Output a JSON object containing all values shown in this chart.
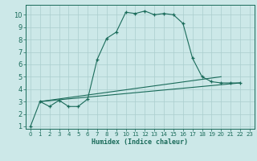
{
  "xlabel": "Humidex (Indice chaleur)",
  "bg_color": "#cce8e8",
  "line_color": "#1a6b5a",
  "grid_color": "#aacece",
  "xlim": [
    -0.5,
    23.5
  ],
  "ylim": [
    0.8,
    10.8
  ],
  "xticks": [
    0,
    1,
    2,
    3,
    4,
    5,
    6,
    7,
    8,
    9,
    10,
    11,
    12,
    13,
    14,
    15,
    16,
    17,
    18,
    19,
    20,
    21,
    22,
    23
  ],
  "yticks": [
    1,
    2,
    3,
    4,
    5,
    6,
    7,
    8,
    9,
    10
  ],
  "main_x": [
    0,
    1,
    2,
    3,
    4,
    5,
    6,
    7,
    8,
    9,
    10,
    11,
    12,
    13,
    14,
    15,
    16,
    17,
    18,
    19,
    20,
    21,
    22
  ],
  "main_y": [
    1.0,
    3.0,
    2.6,
    3.1,
    2.6,
    2.6,
    3.2,
    6.4,
    8.1,
    8.6,
    10.2,
    10.1,
    10.3,
    10.0,
    10.1,
    10.0,
    9.3,
    6.5,
    5.0,
    4.6,
    4.5,
    4.5,
    4.5
  ],
  "line1_x": [
    1,
    22
  ],
  "line1_y": [
    3.0,
    4.5
  ],
  "line2_x": [
    1,
    20
  ],
  "line2_y": [
    3.0,
    5.0
  ],
  "xlabel_fontsize": 6,
  "tick_fontsize": 5
}
